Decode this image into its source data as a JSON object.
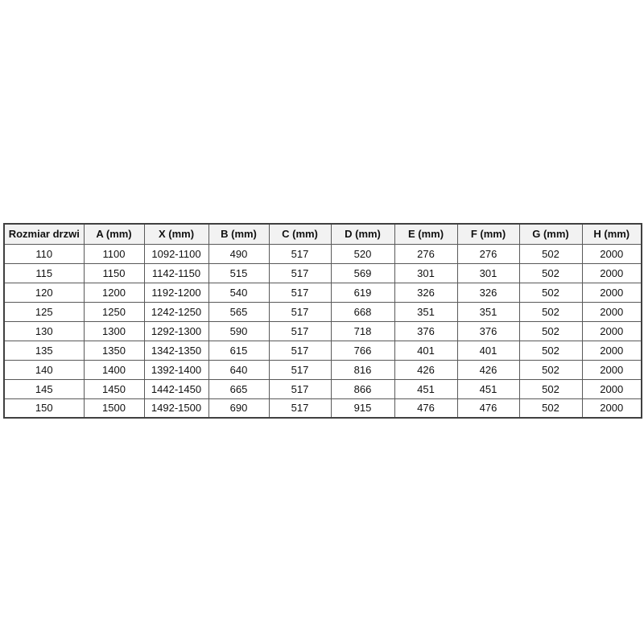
{
  "chart_data": {
    "type": "table",
    "title": "",
    "columns": [
      "Rozmiar drzwi",
      "A (mm)",
      "X (mm)",
      "B (mm)",
      "C (mm)",
      "D (mm)",
      "E (mm)",
      "F (mm)",
      "G (mm)",
      "H (mm)"
    ],
    "rows": [
      [
        "110",
        "1100",
        "1092-1100",
        "490",
        "517",
        "520",
        "276",
        "276",
        "502",
        "2000"
      ],
      [
        "115",
        "1150",
        "1142-1150",
        "515",
        "517",
        "569",
        "301",
        "301",
        "502",
        "2000"
      ],
      [
        "120",
        "1200",
        "1192-1200",
        "540",
        "517",
        "619",
        "326",
        "326",
        "502",
        "2000"
      ],
      [
        "125",
        "1250",
        "1242-1250",
        "565",
        "517",
        "668",
        "351",
        "351",
        "502",
        "2000"
      ],
      [
        "130",
        "1300",
        "1292-1300",
        "590",
        "517",
        "718",
        "376",
        "376",
        "502",
        "2000"
      ],
      [
        "135",
        "1350",
        "1342-1350",
        "615",
        "517",
        "766",
        "401",
        "401",
        "502",
        "2000"
      ],
      [
        "140",
        "1400",
        "1392-1400",
        "640",
        "517",
        "816",
        "426",
        "426",
        "502",
        "2000"
      ],
      [
        "145",
        "1450",
        "1442-1450",
        "665",
        "517",
        "866",
        "451",
        "451",
        "502",
        "2000"
      ],
      [
        "150",
        "1500",
        "1492-1500",
        "690",
        "517",
        "915",
        "476",
        "476",
        "502",
        "2000"
      ]
    ],
    "layout": {
      "grid": true,
      "header_row": true
    }
  },
  "style": {
    "header_bg": "#f2f2f2",
    "border_color": "#595959",
    "outer_border_color": "#404040",
    "text_color": "#111111",
    "page_bg": "#ffffff"
  }
}
